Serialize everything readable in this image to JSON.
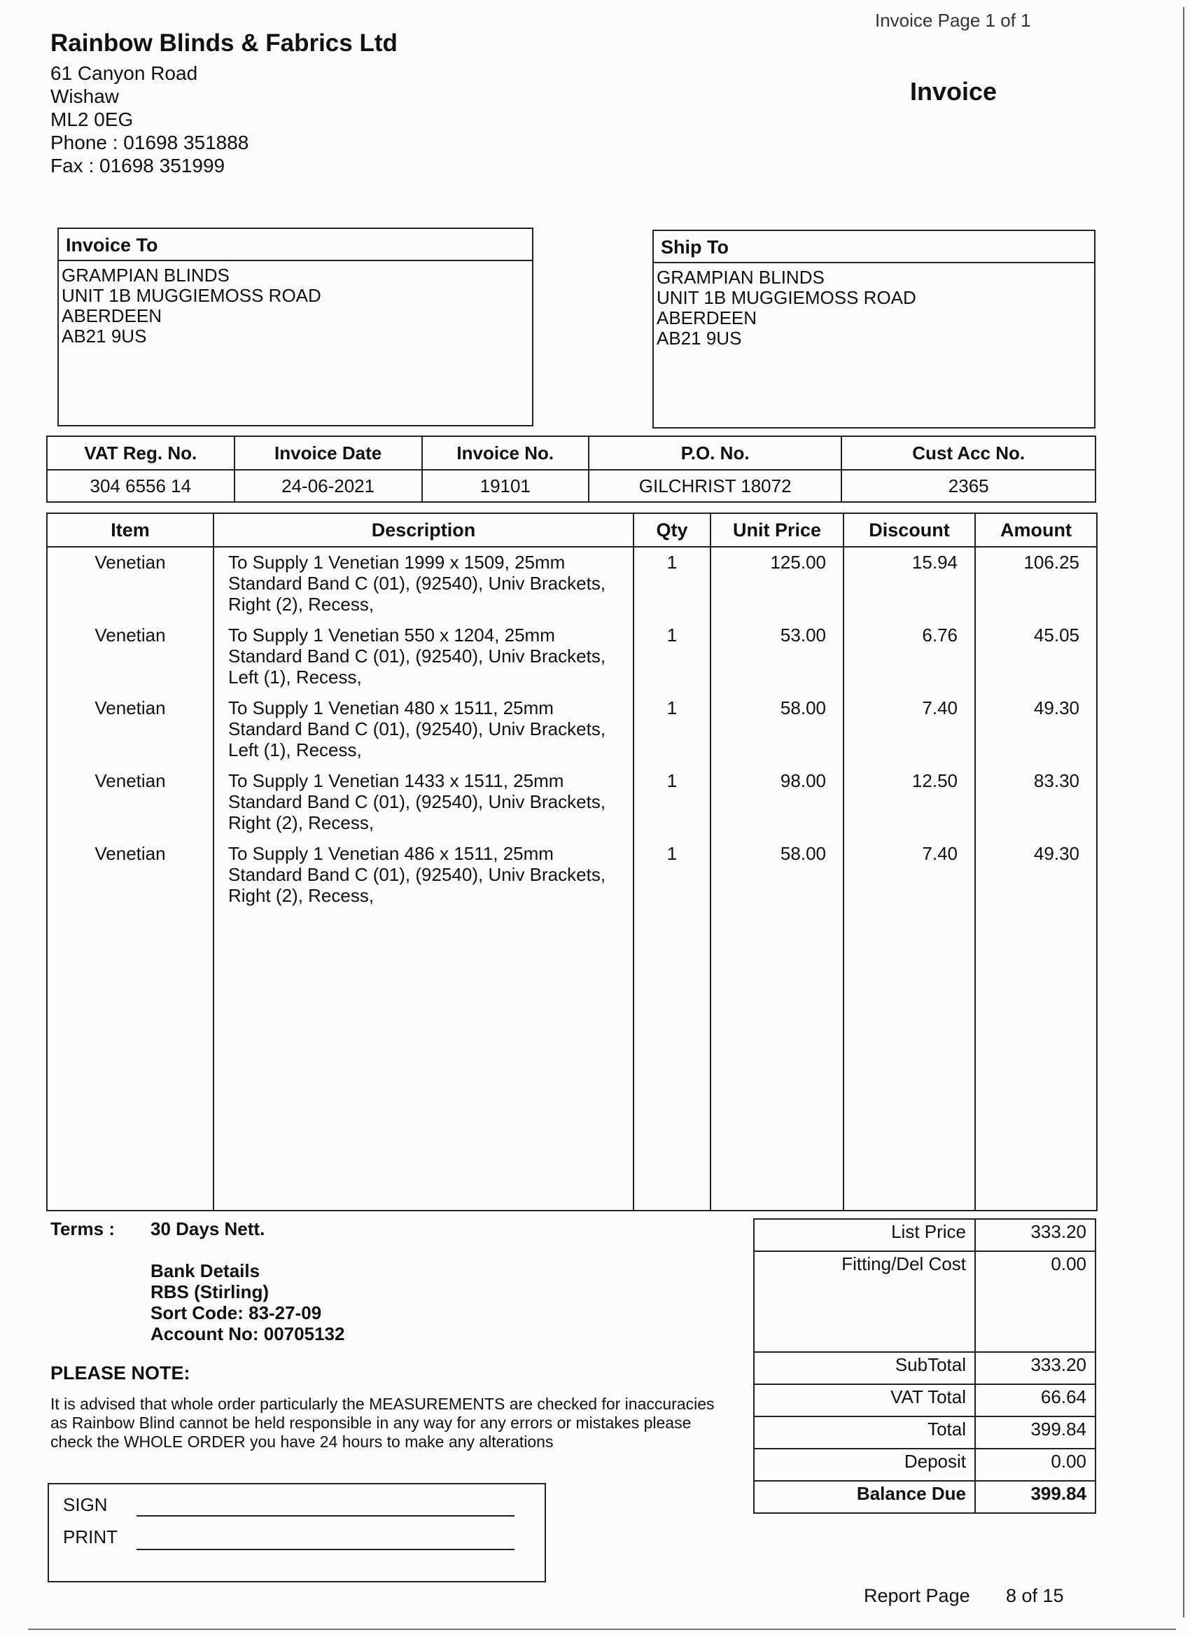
{
  "page_header": {
    "cut_text": "Invoice Page     1 of 1"
  },
  "company": {
    "name": "Rainbow Blinds & Fabrics Ltd",
    "address": [
      "61 Canyon Road",
      "Wishaw",
      "ML2 0EG"
    ],
    "phone": "Phone : 01698 351888",
    "fax": "Fax : 01698 351999"
  },
  "document_title": "Invoice",
  "invoice_to": {
    "label": "Invoice To",
    "lines": [
      "GRAMPIAN BLINDS",
      "UNIT 1B MUGGIEMOSS ROAD",
      "ABERDEEN",
      "AB21 9US"
    ]
  },
  "ship_to": {
    "label": "Ship To",
    "lines": [
      "GRAMPIAN BLINDS",
      "UNIT 1B MUGGIEMOSS ROAD",
      "ABERDEEN",
      "AB21 9US"
    ]
  },
  "info": {
    "headers": [
      "VAT Reg. No.",
      "Invoice Date",
      "Invoice No.",
      "P.O. No.",
      "Cust Acc No."
    ],
    "values": [
      "304 6556 14",
      "24-06-2021",
      "19101",
      "GILCHRIST 18072",
      "2365"
    ]
  },
  "items": {
    "headers": [
      "Item",
      "Description",
      "Qty",
      "Unit Price",
      "Discount",
      "Amount"
    ],
    "rows": [
      {
        "item": "Venetian",
        "desc": [
          "To Supply 1 Venetian  1999 x 1509, 25mm",
          "Standard Band C (01), (92540), Univ Brackets,",
          "Right (2), Recess,"
        ],
        "qty": "1",
        "unit_price": "125.00",
        "discount": "15.94",
        "amount": "106.25"
      },
      {
        "item": "Venetian",
        "desc": [
          "To Supply 1 Venetian  550 x 1204, 25mm",
          "Standard Band C (01), (92540), Univ Brackets,",
          "Left (1), Recess,"
        ],
        "qty": "1",
        "unit_price": "53.00",
        "discount": "6.76",
        "amount": "45.05"
      },
      {
        "item": "Venetian",
        "desc": [
          "To Supply 1 Venetian  480 x 1511, 25mm",
          "Standard Band C (01), (92540), Univ Brackets,",
          "Left (1), Recess,"
        ],
        "qty": "1",
        "unit_price": "58.00",
        "discount": "7.40",
        "amount": "49.30"
      },
      {
        "item": "Venetian",
        "desc": [
          "To Supply 1 Venetian  1433 x 1511, 25mm",
          "Standard Band C (01), (92540), Univ Brackets,",
          "Right (2), Recess,"
        ],
        "qty": "1",
        "unit_price": "98.00",
        "discount": "12.50",
        "amount": "83.30"
      },
      {
        "item": "Venetian",
        "desc": [
          "To Supply 1 Venetian  486 x 1511, 25mm",
          "Standard Band C (01), (92540), Univ Brackets,",
          "Right (2), Recess,"
        ],
        "qty": "1",
        "unit_price": "58.00",
        "discount": "7.40",
        "amount": "49.30"
      }
    ]
  },
  "terms": {
    "label": "Terms :",
    "value": "30 Days Nett.",
    "bank": [
      "Bank Details",
      "RBS (Stirling)",
      "Sort Code: 83-27-09",
      "Account No: 00705132"
    ]
  },
  "note": {
    "title": "PLEASE NOTE:",
    "text": "It is advised that whole order particularly the MEASUREMENTS are checked for inaccuracies as Rainbow Blind cannot be held responsible in any way for any errors or mistakes please check the WHOLE ORDER you have 24 hours to make any alterations"
  },
  "sign": {
    "sign_label": "SIGN",
    "print_label": "PRINT"
  },
  "totals": [
    {
      "label": "List Price",
      "value": "333.20"
    },
    {
      "label": "Fitting/Del Cost",
      "value": "0.00"
    },
    {
      "label": "SubTotal",
      "value": "333.20"
    },
    {
      "label": "VAT Total",
      "value": "66.64"
    },
    {
      "label": "Total",
      "value": "399.84"
    },
    {
      "label": "Deposit",
      "value": "0.00"
    },
    {
      "label": "Balance Due",
      "value": "399.84"
    }
  ],
  "footer": {
    "report_page_label": "Report Page",
    "report_page_value": "8 of 15"
  }
}
